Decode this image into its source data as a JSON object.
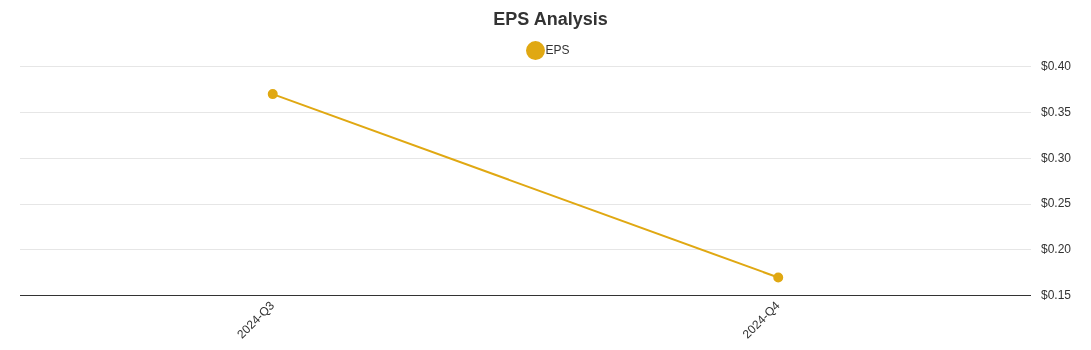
{
  "chart_data": {
    "type": "line",
    "title": "EPS Analysis",
    "categories": [
      "2024-Q3",
      "2024-Q4"
    ],
    "series": [
      {
        "name": "EPS",
        "color": "#e0a812",
        "values": [
          0.37,
          0.17
        ]
      }
    ],
    "ylim": [
      0.15,
      0.4
    ],
    "yticks": [
      {
        "value": 0.15,
        "label": "$0.15"
      },
      {
        "value": 0.2,
        "label": "$0.20"
      },
      {
        "value": 0.25,
        "label": "$0.25"
      },
      {
        "value": 0.3,
        "label": "$0.30"
      },
      {
        "value": 0.35,
        "label": "$0.35"
      },
      {
        "value": 0.4,
        "label": "$0.40"
      }
    ],
    "grid": "y",
    "legend": "top",
    "marker": "circle",
    "line_style": "solid"
  }
}
